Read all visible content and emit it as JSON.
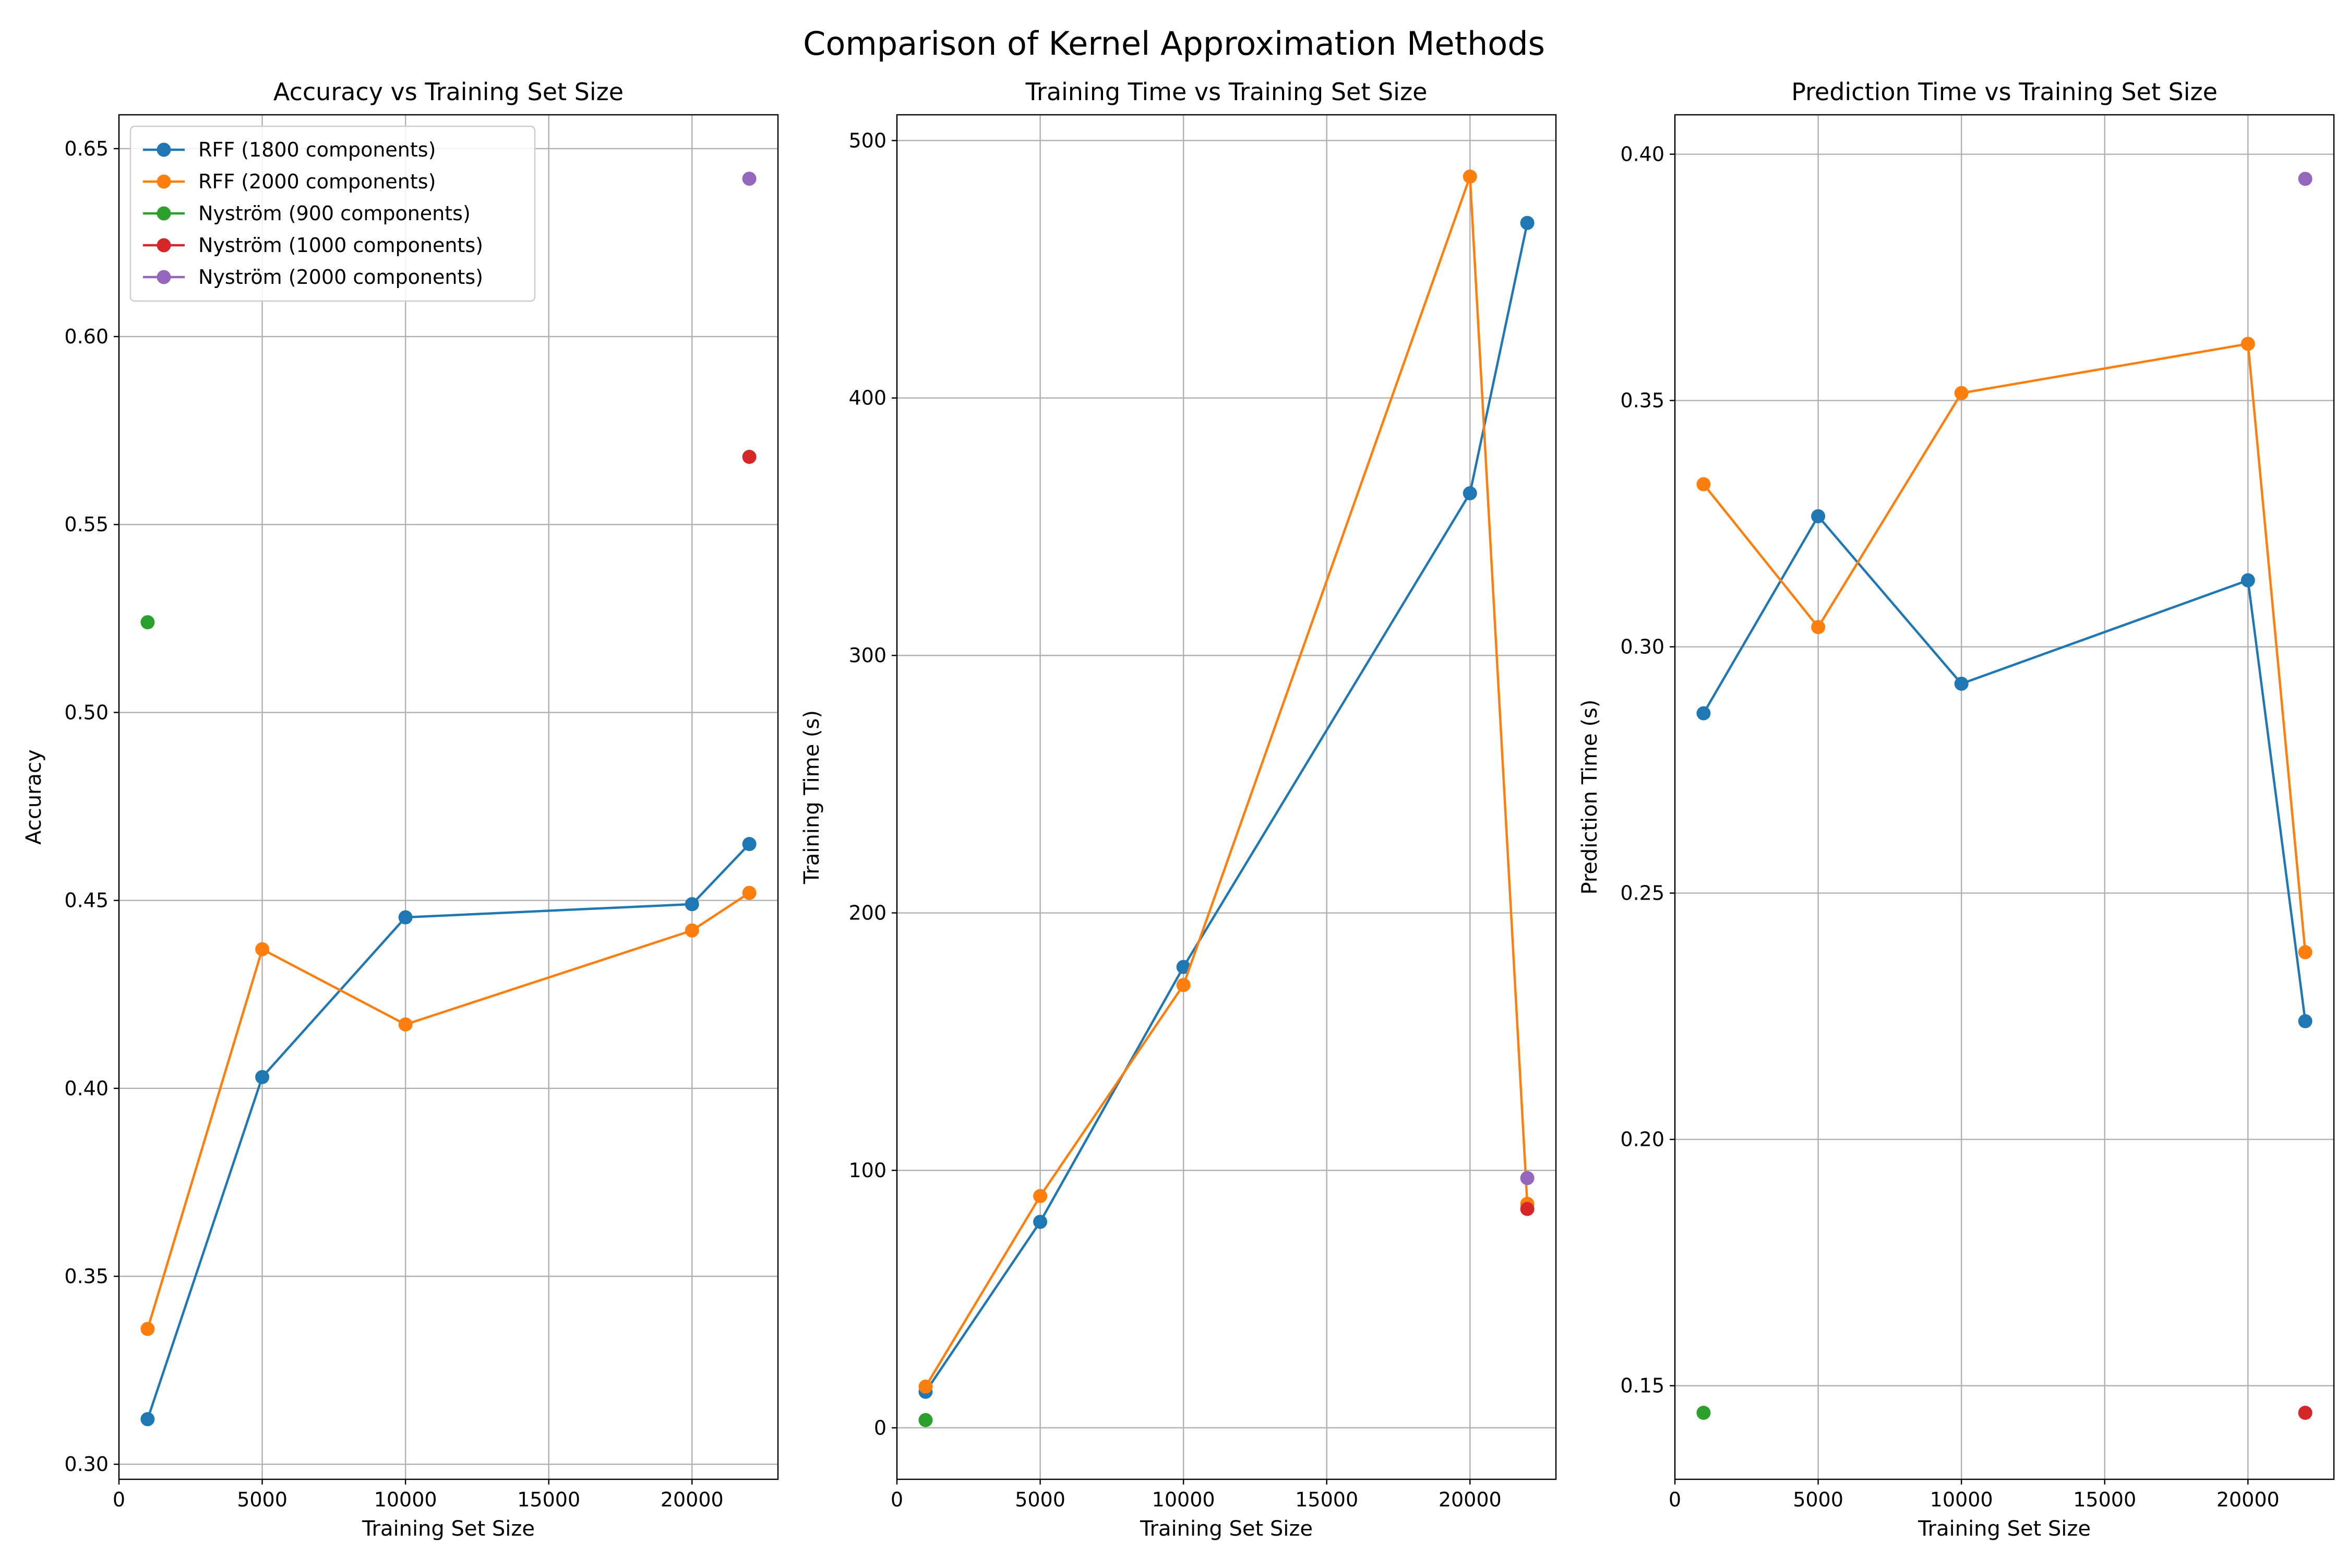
{
  "suptitle": "Comparison of Kernel Approximation Methods",
  "colors": {
    "RFF (1800 components)": "#1f77b4",
    "RFF (2000 components)": "#ff7f0e",
    "Nyström (900 components)": "#2ca02c",
    "Nyström (1000 components)": "#d62728",
    "Nyström (2000 components)": "#9467bd"
  },
  "chart_data": [
    {
      "type": "line",
      "title": "Accuracy vs Training Set Size",
      "xlabel": "Training Set Size",
      "ylabel": "Accuracy",
      "xlim": [
        0,
        23000
      ],
      "ylim": [
        0.296,
        0.659
      ],
      "xticks": [
        0,
        5000,
        10000,
        15000,
        20000
      ],
      "yticks": [
        0.3,
        0.35,
        0.4,
        0.45,
        0.5,
        0.55,
        0.6,
        0.65
      ],
      "ytick_decimals": 2,
      "grid": true,
      "legend": "upper-left",
      "series": [
        {
          "name": "RFF (1800 components)",
          "x": [
            1000,
            5000,
            10000,
            20000,
            22000
          ],
          "y": [
            0.312,
            0.403,
            0.4455,
            0.449,
            0.465
          ]
        },
        {
          "name": "RFF (2000 components)",
          "x": [
            1000,
            5000,
            10000,
            20000,
            22000
          ],
          "y": [
            0.336,
            0.437,
            0.417,
            0.442,
            0.452
          ]
        },
        {
          "name": "Nyström (900 components)",
          "x": [
            1000
          ],
          "y": [
            0.524
          ]
        },
        {
          "name": "Nyström (1000 components)",
          "x": [
            22000
          ],
          "y": [
            0.568
          ]
        },
        {
          "name": "Nyström (2000 components)",
          "x": [
            22000
          ],
          "y": [
            0.642
          ]
        }
      ]
    },
    {
      "type": "line",
      "title": "Training Time vs Training Set Size",
      "xlabel": "Training Set Size",
      "ylabel": "Training Time (s)",
      "xlim": [
        0,
        23000
      ],
      "ylim": [
        -20,
        510
      ],
      "xticks": [
        0,
        5000,
        10000,
        15000,
        20000
      ],
      "yticks": [
        0,
        100,
        200,
        300,
        400,
        500
      ],
      "ytick_decimals": 0,
      "grid": true,
      "series": [
        {
          "name": "RFF (1800 components)",
          "x": [
            1000,
            5000,
            10000,
            20000,
            22000
          ],
          "y": [
            14,
            80,
            179,
            363,
            468
          ]
        },
        {
          "name": "RFF (2000 components)",
          "x": [
            1000,
            5000,
            10000,
            20000,
            22000
          ],
          "y": [
            16,
            90,
            172,
            486,
            87
          ]
        },
        {
          "name": "Nyström (900 components)",
          "x": [
            1000
          ],
          "y": [
            3
          ]
        },
        {
          "name": "Nyström (1000 components)",
          "x": [
            22000
          ],
          "y": [
            85
          ]
        },
        {
          "name": "Nyström (2000 components)",
          "x": [
            22000
          ],
          "y": [
            97
          ]
        }
      ]
    },
    {
      "type": "line",
      "title": "Prediction Time vs Training Set Size",
      "xlabel": "Training Set Size",
      "ylabel": "Prediction Time (s)",
      "xlim": [
        0,
        23000
      ],
      "ylim": [
        0.131,
        0.408
      ],
      "xticks": [
        0,
        5000,
        10000,
        15000,
        20000
      ],
      "yticks": [
        0.15,
        0.2,
        0.25,
        0.3,
        0.35,
        0.4
      ],
      "ytick_decimals": 2,
      "grid": true,
      "series": [
        {
          "name": "RFF (1800 components)",
          "x": [
            1000,
            5000,
            10000,
            20000,
            22000
          ],
          "y": [
            0.2865,
            0.3265,
            0.2925,
            0.3135,
            0.224
          ]
        },
        {
          "name": "RFF (2000 components)",
          "x": [
            1000,
            5000,
            10000,
            20000,
            22000
          ],
          "y": [
            0.333,
            0.304,
            0.3515,
            0.3615,
            0.238
          ]
        },
        {
          "name": "Nyström (900 components)",
          "x": [
            1000
          ],
          "y": [
            0.1445
          ]
        },
        {
          "name": "Nyström (1000 components)",
          "x": [
            22000
          ],
          "y": [
            0.1445
          ]
        },
        {
          "name": "Nyström (2000 components)",
          "x": [
            22000
          ],
          "y": [
            0.395
          ]
        }
      ]
    }
  ]
}
